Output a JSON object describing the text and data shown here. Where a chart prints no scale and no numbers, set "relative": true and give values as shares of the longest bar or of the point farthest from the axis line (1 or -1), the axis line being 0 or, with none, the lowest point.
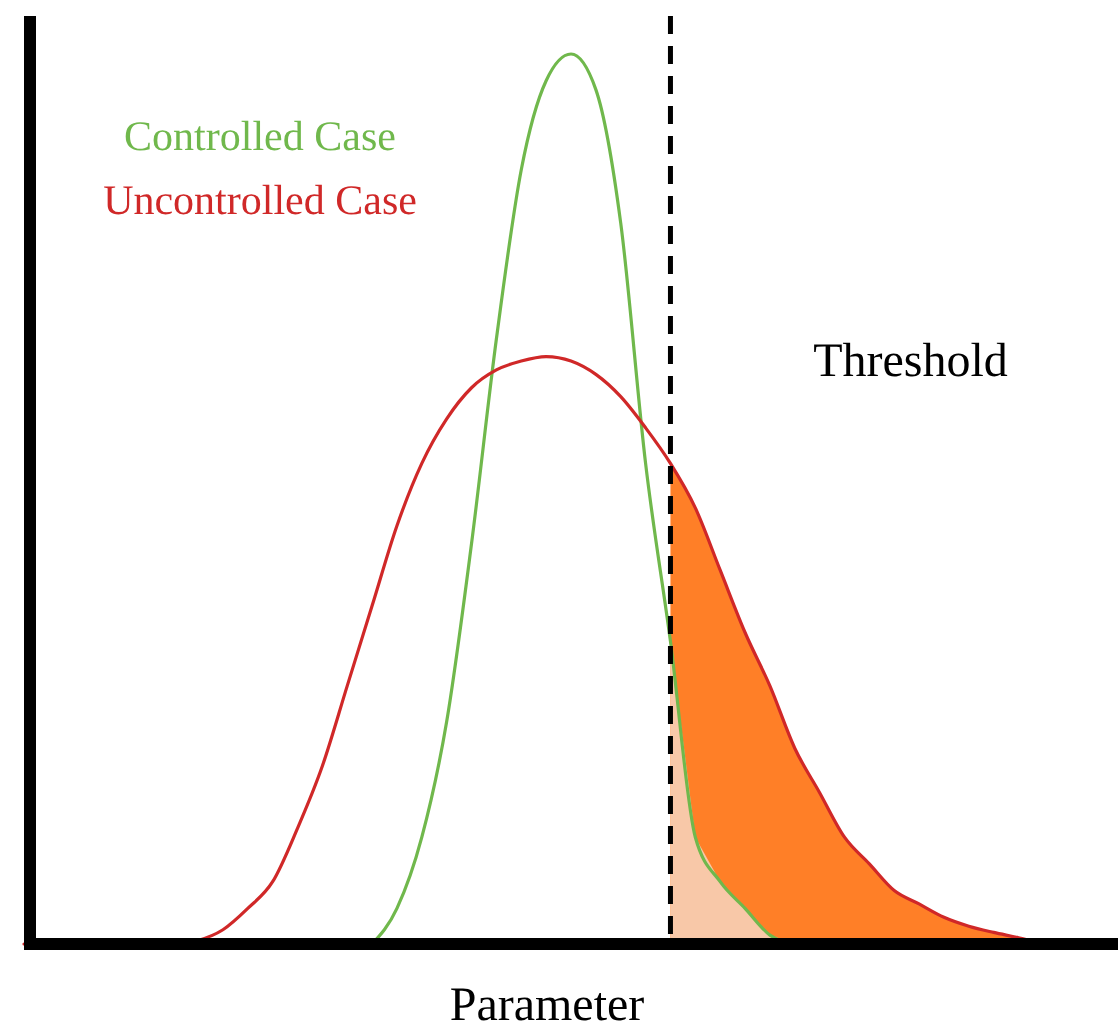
{
  "chart_data": {
    "type": "line",
    "relative": true,
    "xlabel": "Parameter",
    "legend": "top left",
    "marker": "none",
    "line_style": "solid",
    "categories": [
      null,
      null,
      null,
      null,
      null,
      null,
      null,
      null,
      null,
      null,
      null,
      null,
      null,
      null,
      null,
      null,
      null,
      null,
      null,
      null,
      null,
      null,
      null,
      null,
      null,
      null,
      null,
      null,
      null,
      null,
      null,
      null,
      null,
      null,
      null,
      null,
      null,
      null,
      null,
      null,
      null,
      null,
      null,
      null,
      null
    ],
    "series": [
      {
        "type": "area",
        "color": "#ff7f27",
        "values": [
          null,
          null,
          null,
          null,
          null,
          null,
          null,
          null,
          null,
          null,
          null,
          null,
          null,
          null,
          null,
          null,
          null,
          null,
          null,
          null,
          null,
          null,
          null,
          null,
          null,
          null,
          0.54,
          0.49,
          0.42,
          0.35,
          0.29,
          0.22,
          0.17,
          0.12,
          0.09,
          0.06,
          0.045,
          0.03,
          0.02,
          0.013,
          0.007,
          0,
          null,
          null,
          null
        ]
      },
      {
        "type": "area",
        "color": "#f8c8a8",
        "values": [
          null,
          null,
          null,
          null,
          null,
          null,
          null,
          null,
          null,
          null,
          null,
          null,
          null,
          null,
          null,
          null,
          null,
          null,
          null,
          null,
          null,
          null,
          null,
          null,
          null,
          null,
          0.34,
          0.12,
          0.07,
          0.04,
          0.01,
          0,
          null,
          null,
          null,
          null,
          null,
          null,
          null,
          null,
          null,
          null,
          null,
          null,
          null
        ]
      },
      {
        "name": "Controlled Case",
        "color": "#70b84c",
        "values": [
          null,
          null,
          null,
          null,
          null,
          null,
          null,
          null,
          null,
          null,
          null,
          null,
          null,
          null,
          0,
          0.04,
          0.12,
          0.25,
          0.45,
          0.68,
          0.87,
          0.97,
          1,
          0.96,
          0.81,
          0.54,
          0.34,
          0.12,
          0.07,
          0.04,
          0.01,
          0,
          null,
          null,
          null,
          null,
          null,
          null,
          null,
          null,
          null,
          null,
          null,
          null,
          null
        ]
      },
      {
        "name": "Uncontrolled Case",
        "color": "#d02828",
        "values": [
          0,
          0,
          0,
          0,
          0,
          0,
          0,
          0.004,
          0.016,
          0.04,
          0.07,
          0.13,
          0.2,
          0.29,
          0.38,
          0.47,
          0.54,
          0.59,
          0.625,
          0.645,
          0.655,
          0.66,
          0.655,
          0.64,
          0.615,
          0.58,
          0.54,
          0.49,
          0.42,
          0.35,
          0.29,
          0.22,
          0.17,
          0.12,
          0.09,
          0.06,
          0.045,
          0.03,
          0.02,
          0.013,
          0.007,
          0,
          null,
          null,
          null
        ]
      }
    ],
    "annotations": [
      "Threshold"
    ]
  }
}
